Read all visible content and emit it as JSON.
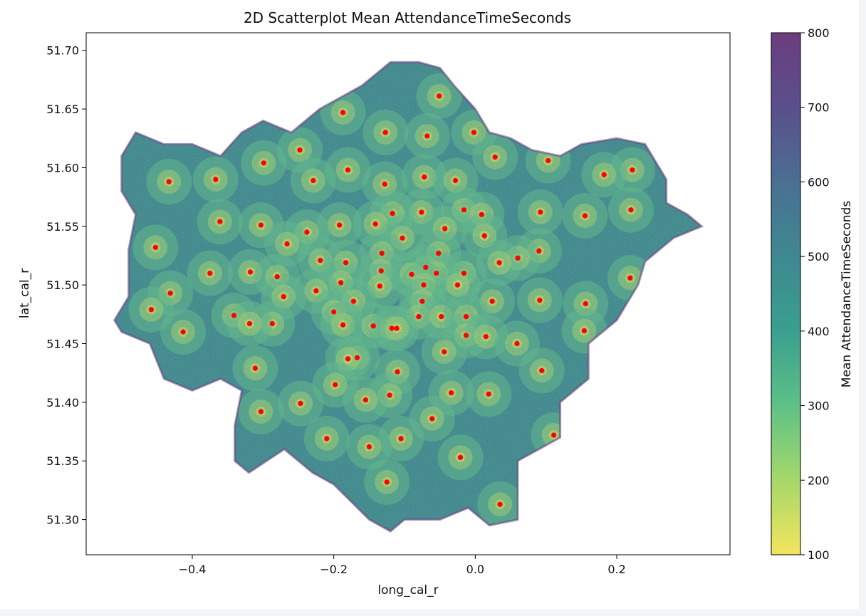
{
  "chart_data": {
    "type": "scatter",
    "title": "2D Scatterplot Mean AttendanceTimeSeconds",
    "xlabel": "long_cal_r",
    "ylabel": "lat_cal_r",
    "xlim": [
      -0.55,
      0.36
    ],
    "ylim": [
      51.27,
      51.715
    ],
    "xticks": [
      -0.4,
      -0.2,
      0.0,
      0.2
    ],
    "xtick_labels": [
      "−0.4",
      "−0.2",
      "0.0",
      "0.2"
    ],
    "yticks": [
      51.3,
      51.35,
      51.4,
      51.45,
      51.5,
      51.55,
      51.6,
      51.65,
      51.7
    ],
    "ytick_labels": [
      "51.30",
      "51.35",
      "51.40",
      "51.45",
      "51.50",
      "51.55",
      "51.60",
      "51.65",
      "51.70"
    ],
    "grid": false,
    "colorbar": {
      "label": "Mean AttendanceTimeSeconds",
      "range": [
        100,
        800
      ],
      "ticks": [
        100,
        200,
        300,
        400,
        500,
        600,
        700,
        800
      ],
      "tick_labels": [
        "100",
        "200",
        "300",
        "400",
        "500",
        "600",
        "700",
        "800"
      ],
      "colormap": "viridis_r",
      "colors": [
        "#f3e55d",
        "#a6d86a",
        "#5ec187",
        "#3a9f8f",
        "#3f8891",
        "#4a6f92",
        "#5a4f8c",
        "#6b3d7e"
      ]
    },
    "station_color": "#ff0000",
    "stations": [
      {
        "x": -0.051,
        "y": 51.661
      },
      {
        "x": -0.187,
        "y": 51.647
      },
      {
        "x": -0.127,
        "y": 51.63
      },
      {
        "x": -0.068,
        "y": 51.627
      },
      {
        "x": -0.002,
        "y": 51.63
      },
      {
        "x": -0.248,
        "y": 51.615
      },
      {
        "x": 0.028,
        "y": 51.609
      },
      {
        "x": 0.103,
        "y": 51.606
      },
      {
        "x": -0.299,
        "y": 51.604
      },
      {
        "x": -0.18,
        "y": 51.598
      },
      {
        "x": 0.222,
        "y": 51.598
      },
      {
        "x": 0.182,
        "y": 51.594
      },
      {
        "x": -0.072,
        "y": 51.592
      },
      {
        "x": -0.367,
        "y": 51.59
      },
      {
        "x": -0.229,
        "y": 51.589
      },
      {
        "x": -0.028,
        "y": 51.589
      },
      {
        "x": -0.433,
        "y": 51.588
      },
      {
        "x": -0.128,
        "y": 51.586
      },
      {
        "x": -0.016,
        "y": 51.564
      },
      {
        "x": 0.22,
        "y": 51.564
      },
      {
        "x": -0.076,
        "y": 51.562
      },
      {
        "x": 0.092,
        "y": 51.562
      },
      {
        "x": -0.117,
        "y": 51.561
      },
      {
        "x": 0.009,
        "y": 51.56
      },
      {
        "x": 0.155,
        "y": 51.559
      },
      {
        "x": -0.361,
        "y": 51.554
      },
      {
        "x": -0.141,
        "y": 51.552
      },
      {
        "x": -0.192,
        "y": 51.551
      },
      {
        "x": -0.303,
        "y": 51.551
      },
      {
        "x": -0.043,
        "y": 51.548
      },
      {
        "x": -0.238,
        "y": 51.545
      },
      {
        "x": 0.013,
        "y": 51.542
      },
      {
        "x": -0.103,
        "y": 51.54
      },
      {
        "x": -0.266,
        "y": 51.535
      },
      {
        "x": -0.452,
        "y": 51.532
      },
      {
        "x": 0.09,
        "y": 51.529
      },
      {
        "x": -0.052,
        "y": 51.527
      },
      {
        "x": -0.132,
        "y": 51.527
      },
      {
        "x": 0.06,
        "y": 51.523
      },
      {
        "x": -0.219,
        "y": 51.521
      },
      {
        "x": -0.183,
        "y": 51.519
      },
      {
        "x": 0.034,
        "y": 51.519
      },
      {
        "x": -0.07,
        "y": 51.515
      },
      {
        "x": -0.133,
        "y": 51.512
      },
      {
        "x": -0.318,
        "y": 51.511
      },
      {
        "x": -0.016,
        "y": 51.51
      },
      {
        "x": -0.375,
        "y": 51.51
      },
      {
        "x": -0.055,
        "y": 51.51
      },
      {
        "x": -0.09,
        "y": 51.509
      },
      {
        "x": -0.28,
        "y": 51.507
      },
      {
        "x": 0.219,
        "y": 51.506
      },
      {
        "x": -0.19,
        "y": 51.502
      },
      {
        "x": -0.025,
        "y": 51.5
      },
      {
        "x": -0.073,
        "y": 51.5
      },
      {
        "x": -0.135,
        "y": 51.499
      },
      {
        "x": -0.225,
        "y": 51.495
      },
      {
        "x": -0.431,
        "y": 51.493
      },
      {
        "x": -0.271,
        "y": 51.49
      },
      {
        "x": 0.091,
        "y": 51.487
      },
      {
        "x": -0.172,
        "y": 51.486
      },
      {
        "x": -0.075,
        "y": 51.486
      },
      {
        "x": 0.024,
        "y": 51.486
      },
      {
        "x": 0.156,
        "y": 51.484
      },
      {
        "x": -0.458,
        "y": 51.479
      },
      {
        "x": -0.2,
        "y": 51.477
      },
      {
        "x": -0.341,
        "y": 51.474
      },
      {
        "x": -0.08,
        "y": 51.473
      },
      {
        "x": -0.048,
        "y": 51.473
      },
      {
        "x": -0.013,
        "y": 51.473
      },
      {
        "x": -0.287,
        "y": 51.467
      },
      {
        "x": -0.319,
        "y": 51.467
      },
      {
        "x": -0.187,
        "y": 51.466
      },
      {
        "x": -0.144,
        "y": 51.465
      },
      {
        "x": -0.118,
        "y": 51.463
      },
      {
        "x": -0.111,
        "y": 51.463
      },
      {
        "x": 0.154,
        "y": 51.461
      },
      {
        "x": -0.413,
        "y": 51.46
      },
      {
        "x": -0.013,
        "y": 51.457
      },
      {
        "x": 0.015,
        "y": 51.456
      },
      {
        "x": 0.059,
        "y": 51.45
      },
      {
        "x": -0.044,
        "y": 51.443
      },
      {
        "x": -0.167,
        "y": 51.438
      },
      {
        "x": -0.18,
        "y": 51.437
      },
      {
        "x": -0.311,
        "y": 51.429
      },
      {
        "x": 0.094,
        "y": 51.427
      },
      {
        "x": -0.11,
        "y": 51.426
      },
      {
        "x": -0.198,
        "y": 51.415
      },
      {
        "x": -0.034,
        "y": 51.408
      },
      {
        "x": 0.019,
        "y": 51.407
      },
      {
        "x": -0.121,
        "y": 51.406
      },
      {
        "x": -0.155,
        "y": 51.402
      },
      {
        "x": -0.247,
        "y": 51.399
      },
      {
        "x": -0.303,
        "y": 51.392
      },
      {
        "x": -0.061,
        "y": 51.386
      },
      {
        "x": 0.111,
        "y": 51.372
      },
      {
        "x": -0.21,
        "y": 51.369
      },
      {
        "x": -0.105,
        "y": 51.369
      },
      {
        "x": -0.15,
        "y": 51.362
      },
      {
        "x": -0.021,
        "y": 51.353
      },
      {
        "x": -0.125,
        "y": 51.332
      },
      {
        "x": 0.035,
        "y": 51.313
      }
    ]
  }
}
